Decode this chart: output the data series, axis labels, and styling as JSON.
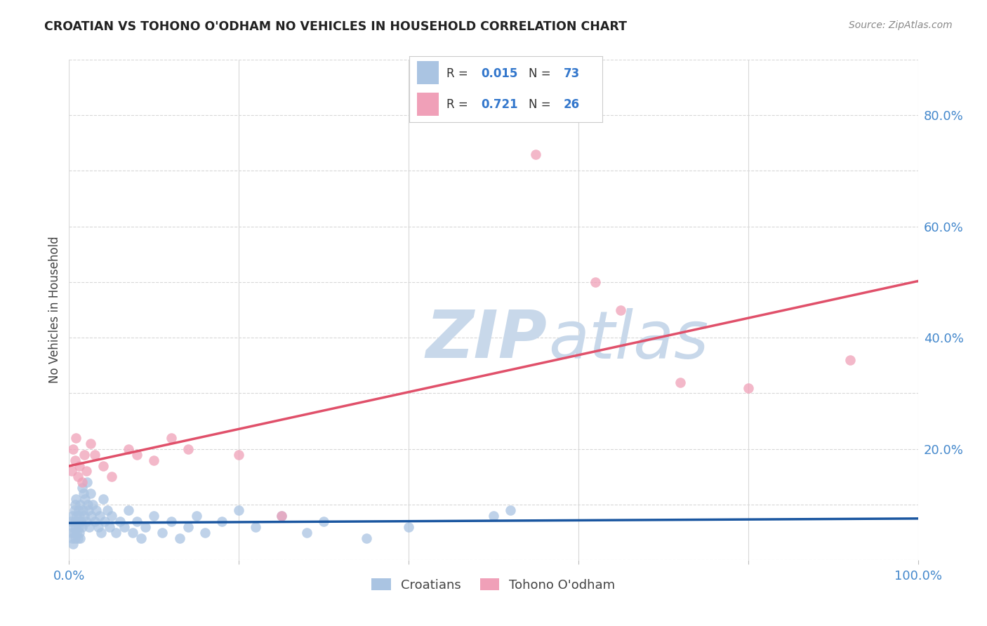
{
  "title": "CROATIAN VS TOHONO O'ODHAM NO VEHICLES IN HOUSEHOLD CORRELATION CHART",
  "source": "Source: ZipAtlas.com",
  "ylabel": "No Vehicles in Household",
  "xlim": [
    0,
    1.0
  ],
  "ylim": [
    0,
    0.9
  ],
  "croatian_R": 0.015,
  "croatian_N": 73,
  "tohono_R": 0.721,
  "tohono_N": 26,
  "croatian_color": "#aac4e2",
  "tohono_color": "#f0a0b8",
  "croatian_line_color": "#1a56a0",
  "tohono_line_color": "#e0506a",
  "watermark_text": "ZIPatlas",
  "watermark_color": "#c8d8ea",
  "croatian_x": [
    0.002,
    0.003,
    0.004,
    0.004,
    0.005,
    0.005,
    0.006,
    0.006,
    0.007,
    0.007,
    0.007,
    0.008,
    0.008,
    0.009,
    0.009,
    0.01,
    0.01,
    0.011,
    0.011,
    0.012,
    0.012,
    0.013,
    0.013,
    0.014,
    0.015,
    0.015,
    0.016,
    0.017,
    0.018,
    0.019,
    0.02,
    0.021,
    0.022,
    0.023,
    0.024,
    0.025,
    0.026,
    0.028,
    0.03,
    0.032,
    0.034,
    0.036,
    0.038,
    0.04,
    0.042,
    0.045,
    0.048,
    0.05,
    0.055,
    0.06,
    0.065,
    0.07,
    0.075,
    0.08,
    0.085,
    0.09,
    0.1,
    0.11,
    0.12,
    0.13,
    0.14,
    0.15,
    0.16,
    0.18,
    0.2,
    0.22,
    0.25,
    0.28,
    0.3,
    0.35,
    0.4,
    0.5,
    0.52
  ],
  "croatian_y": [
    0.07,
    0.05,
    0.04,
    0.08,
    0.03,
    0.06,
    0.05,
    0.09,
    0.04,
    0.07,
    0.1,
    0.06,
    0.11,
    0.05,
    0.08,
    0.04,
    0.07,
    0.06,
    0.09,
    0.05,
    0.08,
    0.04,
    0.1,
    0.07,
    0.06,
    0.13,
    0.09,
    0.12,
    0.08,
    0.11,
    0.07,
    0.14,
    0.1,
    0.09,
    0.06,
    0.12,
    0.08,
    0.1,
    0.07,
    0.09,
    0.06,
    0.08,
    0.05,
    0.11,
    0.07,
    0.09,
    0.06,
    0.08,
    0.05,
    0.07,
    0.06,
    0.09,
    0.05,
    0.07,
    0.04,
    0.06,
    0.08,
    0.05,
    0.07,
    0.04,
    0.06,
    0.08,
    0.05,
    0.07,
    0.09,
    0.06,
    0.08,
    0.05,
    0.07,
    0.04,
    0.06,
    0.08,
    0.09
  ],
  "tohono_x": [
    0.003,
    0.005,
    0.007,
    0.008,
    0.01,
    0.012,
    0.015,
    0.018,
    0.02,
    0.025,
    0.03,
    0.04,
    0.05,
    0.07,
    0.08,
    0.1,
    0.12,
    0.14,
    0.2,
    0.25,
    0.55,
    0.62,
    0.65,
    0.72,
    0.8,
    0.92
  ],
  "tohono_y": [
    0.16,
    0.2,
    0.18,
    0.22,
    0.15,
    0.17,
    0.14,
    0.19,
    0.16,
    0.21,
    0.19,
    0.17,
    0.15,
    0.2,
    0.19,
    0.18,
    0.22,
    0.2,
    0.19,
    0.08,
    0.73,
    0.5,
    0.45,
    0.32,
    0.31,
    0.36
  ],
  "grid_color": "#d8d8d8",
  "right_ytick_color": "#4488cc",
  "xtick_color": "#4488cc",
  "legend_r1": "R = 0.015   N = 73",
  "legend_r2": "R = 0.721   N = 26"
}
